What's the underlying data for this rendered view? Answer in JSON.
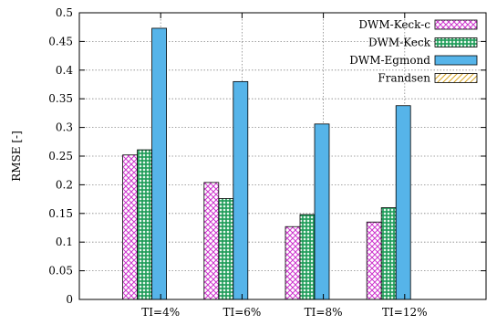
{
  "chart_data": {
    "type": "bar",
    "categories": [
      "TI=4%",
      "TI=6%",
      "TI=8%",
      "TI=12%"
    ],
    "series": [
      {
        "name": "DWM-Keck-c",
        "values": [
          0.252,
          0.204,
          0.127,
          0.135
        ],
        "color": "#cc33cc",
        "pattern": "crosshatch"
      },
      {
        "name": "DWM-Keck",
        "values": [
          0.261,
          0.176,
          0.148,
          0.16
        ],
        "color": "#1a9a55",
        "pattern": "grid"
      },
      {
        "name": "DWM-Egmond",
        "values": [
          0.473,
          0.38,
          0.306,
          0.338
        ],
        "color": "#56b4e9",
        "pattern": "solid"
      },
      {
        "name": "Frandsen",
        "values": [
          null,
          null,
          null,
          null
        ],
        "color": "#d9a520",
        "pattern": "diagonal"
      }
    ],
    "xlabel": "",
    "ylabel": "RMSE [-]",
    "ylim": [
      0,
      0.5
    ],
    "yticks": [
      0,
      0.05,
      0.1,
      0.15,
      0.2,
      0.25,
      0.3,
      0.35,
      0.4,
      0.45,
      0.5
    ],
    "ytick_labels": [
      "0",
      "0.05",
      "0.1",
      "0.15",
      "0.2",
      "0.25",
      "0.3",
      "0.35",
      "0.4",
      "0.45",
      "0.5"
    ],
    "grid": true,
    "legend": "top-right"
  }
}
